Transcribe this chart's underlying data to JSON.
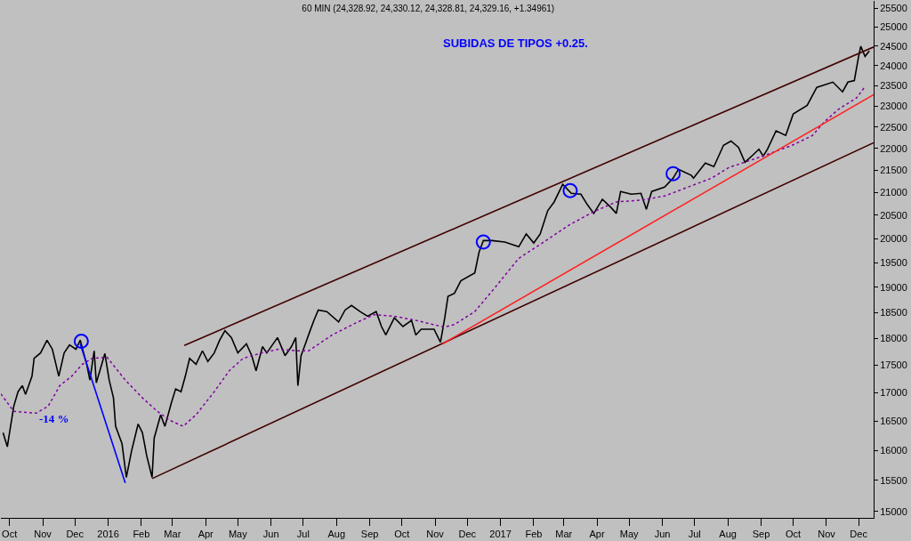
{
  "chart_data": {
    "type": "line",
    "title": "60 MIN (24,328.92, 24,330.12, 24,328.81, 24,329.16, +1.34961)",
    "log": true,
    "grid": false,
    "xlim": [
      "2015-09-23",
      "2017-12-15"
    ],
    "xticks": [
      {
        "value": "2015-10-01",
        "label": "Oct"
      },
      {
        "value": "2015-11-01",
        "label": "Nov"
      },
      {
        "value": "2015-12-01",
        "label": "Dec"
      },
      {
        "value": "2016-01-01",
        "label": "2016"
      },
      {
        "value": "2016-02-01",
        "label": "Feb"
      },
      {
        "value": "2016-03-01",
        "label": "Mar"
      },
      {
        "value": "2016-04-01",
        "label": "Apr"
      },
      {
        "value": "2016-05-01",
        "label": "May"
      },
      {
        "value": "2016-06-01",
        "label": "Jun"
      },
      {
        "value": "2016-07-01",
        "label": "Jul"
      },
      {
        "value": "2016-08-01",
        "label": "Aug"
      },
      {
        "value": "2016-09-01",
        "label": "Sep"
      },
      {
        "value": "2016-10-01",
        "label": "Oct"
      },
      {
        "value": "2016-11-01",
        "label": "Nov"
      },
      {
        "value": "2016-12-01",
        "label": "Dec"
      },
      {
        "value": "2017-01-01",
        "label": "2017"
      },
      {
        "value": "2017-02-01",
        "label": "Feb"
      },
      {
        "value": "2017-03-01",
        "label": "Mar"
      },
      {
        "value": "2017-04-01",
        "label": "Apr"
      },
      {
        "value": "2017-05-01",
        "label": "May"
      },
      {
        "value": "2017-06-01",
        "label": "Jun"
      },
      {
        "value": "2017-07-01",
        "label": "Jul"
      },
      {
        "value": "2017-08-01",
        "label": "Aug"
      },
      {
        "value": "2017-09-01",
        "label": "Sep"
      },
      {
        "value": "2017-10-01",
        "label": "Oct"
      },
      {
        "value": "2017-11-01",
        "label": "Nov"
      },
      {
        "value": "2017-12-01",
        "label": "Dec"
      }
    ],
    "ylim": [
      14900,
      25700
    ],
    "yticks": [
      15000,
      15500,
      16000,
      16500,
      17000,
      17500,
      18000,
      18500,
      19000,
      19500,
      20000,
      20500,
      21000,
      21500,
      22000,
      22500,
      23000,
      23500,
      24000,
      24500,
      25000,
      25500
    ],
    "annotations": [
      "SUBIDAS DE TIPOS +0.25.",
      "-14 %"
    ],
    "series": [
      {
        "color": "#000000",
        "line_style": "solid",
        "x": [
          "2015-09-25",
          "2015-09-29",
          "2015-10-05",
          "2015-10-09",
          "2015-10-13",
          "2015-10-16",
          "2015-10-22",
          "2015-10-24",
          "2015-10-30",
          "2015-11-05",
          "2015-11-10",
          "2015-11-16",
          "2015-11-21",
          "2015-11-26",
          "2015-12-02",
          "2015-12-06",
          "2015-12-12",
          "2015-12-15",
          "2015-12-19",
          "2015-12-21",
          "2015-12-29",
          "2016-01-02",
          "2016-01-06",
          "2016-01-08",
          "2016-01-14",
          "2016-01-18",
          "2016-01-23",
          "2016-01-29",
          "2016-02-02",
          "2016-02-06",
          "2016-02-11",
          "2016-02-13",
          "2016-02-19",
          "2016-02-23",
          "2016-02-29",
          "2016-03-04",
          "2016-03-09",
          "2016-03-13",
          "2016-03-17",
          "2016-03-23",
          "2016-03-29",
          "2016-04-03",
          "2016-04-09",
          "2016-04-14",
          "2016-04-19",
          "2016-04-25",
          "2016-05-01",
          "2016-05-09",
          "2016-05-14",
          "2016-05-18",
          "2016-05-24",
          "2016-05-28",
          "2016-06-07",
          "2016-06-14",
          "2016-06-20",
          "2016-06-24",
          "2016-06-26",
          "2016-06-29",
          "2016-07-03",
          "2016-07-07",
          "2016-07-11",
          "2016-07-15",
          "2016-07-23",
          "2016-08-03",
          "2016-08-09",
          "2016-08-15",
          "2016-08-23",
          "2016-08-30",
          "2016-09-07",
          "2016-09-12",
          "2016-09-16",
          "2016-09-24",
          "2016-10-02",
          "2016-10-10",
          "2016-10-14",
          "2016-10-19",
          "2016-10-31",
          "2016-11-06",
          "2016-11-10",
          "2016-11-13",
          "2016-11-19",
          "2016-11-25",
          "2016-12-08",
          "2016-12-12",
          "2016-12-16",
          "2016-12-24",
          "2017-01-05",
          "2017-01-18",
          "2017-01-25",
          "2017-02-01",
          "2017-02-07",
          "2017-02-14",
          "2017-02-20",
          "2017-02-28",
          "2017-03-08",
          "2017-03-17",
          "2017-03-23",
          "2017-03-29",
          "2017-04-06",
          "2017-04-14",
          "2017-04-19",
          "2017-04-23",
          "2017-05-03",
          "2017-05-12",
          "2017-05-17",
          "2017-05-22",
          "2017-06-03",
          "2017-06-11",
          "2017-06-16",
          "2017-06-28",
          "2017-06-30",
          "2017-07-11",
          "2017-07-19",
          "2017-07-28",
          "2017-08-04",
          "2017-08-11",
          "2017-08-17",
          "2017-08-25",
          "2017-08-30",
          "2017-09-03",
          "2017-09-07",
          "2017-09-15",
          "2017-09-24",
          "2017-10-01",
          "2017-10-14",
          "2017-10-23",
          "2017-11-07",
          "2017-11-16",
          "2017-11-21",
          "2017-11-27",
          "2017-12-01",
          "2017-12-03",
          "2017-12-07",
          "2017-12-11"
        ],
        "values": [
          16300,
          16060,
          16760,
          17020,
          17130,
          16970,
          17300,
          17630,
          17730,
          17970,
          17800,
          17300,
          17730,
          17880,
          17800,
          17970,
          17520,
          17230,
          17770,
          17180,
          17720,
          17230,
          16910,
          16410,
          16110,
          15550,
          16000,
          16450,
          16300,
          15910,
          15550,
          16210,
          16610,
          16410,
          16820,
          17070,
          17020,
          17300,
          17630,
          17520,
          17770,
          17570,
          17730,
          17970,
          18150,
          18020,
          17730,
          17900,
          17680,
          17400,
          17850,
          17730,
          18020,
          17680,
          17850,
          18020,
          17130,
          17680,
          17900,
          18130,
          18350,
          18550,
          18520,
          18320,
          18550,
          18640,
          18520,
          18430,
          18520,
          18230,
          18070,
          18400,
          18230,
          18350,
          18070,
          18180,
          18180,
          17930,
          18400,
          18820,
          18880,
          19130,
          19290,
          19720,
          19960,
          19960,
          19930,
          19830,
          20100,
          19910,
          20100,
          20600,
          20790,
          21180,
          20980,
          20960,
          20730,
          20540,
          20850,
          20670,
          20540,
          21020,
          20960,
          20980,
          20630,
          21020,
          21120,
          21320,
          21520,
          21380,
          21320,
          21660,
          21580,
          22070,
          22170,
          22020,
          21680,
          21860,
          21980,
          21820,
          21980,
          22410,
          22300,
          22810,
          23020,
          23460,
          23590,
          23350,
          23590,
          23630,
          24240,
          24500,
          24240,
          24380
        ]
      },
      {
        "type": "line",
        "color": "#8000a0",
        "line_style": "dotted",
        "x": [
          "2015-09-23",
          "2015-10-05",
          "2015-10-26",
          "2015-11-06",
          "2015-11-17",
          "2015-11-28",
          "2015-12-08",
          "2015-12-17",
          "2015-12-31",
          "2016-01-17",
          "2016-02-02",
          "2016-02-16",
          "2016-02-27",
          "2016-03-11",
          "2016-03-23",
          "2016-04-09",
          "2016-04-23",
          "2016-05-06",
          "2016-05-23",
          "2016-06-08",
          "2016-06-25",
          "2016-07-06",
          "2016-07-28",
          "2016-08-19",
          "2016-09-05",
          "2016-09-24",
          "2016-10-14",
          "2016-10-30",
          "2016-11-10",
          "2016-11-19",
          "2016-12-08",
          "2016-12-27",
          "2017-01-18",
          "2017-02-09",
          "2017-03-06",
          "2017-03-29",
          "2017-04-19",
          "2017-05-12",
          "2017-06-03",
          "2017-06-25",
          "2017-07-17",
          "2017-08-02",
          "2017-08-17",
          "2017-09-07",
          "2017-09-30",
          "2017-10-19",
          "2017-10-30",
          "2017-11-12",
          "2017-11-29",
          "2017-12-07"
        ],
        "values": [
          16980,
          16670,
          16640,
          16760,
          17130,
          17300,
          17520,
          17630,
          17650,
          17230,
          16910,
          16670,
          16520,
          16410,
          16610,
          17020,
          17400,
          17630,
          17730,
          17800,
          17770,
          17770,
          18070,
          18300,
          18460,
          18430,
          18350,
          18270,
          18220,
          18270,
          18520,
          19000,
          19590,
          19910,
          20290,
          20580,
          20790,
          20830,
          20920,
          21120,
          21320,
          21560,
          21680,
          21860,
          22070,
          22300,
          22620,
          22920,
          23200,
          23480
        ]
      },
      {
        "type": "line",
        "color": "#400000",
        "line_style": "solid",
        "x": [
          "2016-03-12",
          "2017-12-15"
        ],
        "values": [
          17870,
          24480
        ]
      },
      {
        "type": "line",
        "color": "#400000",
        "line_style": "solid",
        "x": [
          "2016-02-11",
          "2017-12-15"
        ],
        "values": [
          15530,
          22130
        ]
      },
      {
        "type": "line",
        "color": "#ff2020",
        "line_style": "solid",
        "x": [
          "2016-11-08",
          "2017-12-15"
        ],
        "values": [
          17900,
          23280
        ]
      },
      {
        "type": "line",
        "color": "#0000ff",
        "line_style": "solid",
        "x": [
          "2015-12-06",
          "2016-01-17"
        ],
        "values": [
          17900,
          15460
        ]
      },
      {
        "type": "scatter",
        "color": "#0000ff",
        "marker": "circle",
        "x": [
          "2015-12-07",
          "2016-12-16",
          "2017-03-07",
          "2017-06-11"
        ],
        "values": [
          17950,
          19930,
          21040,
          21420
        ]
      }
    ]
  }
}
